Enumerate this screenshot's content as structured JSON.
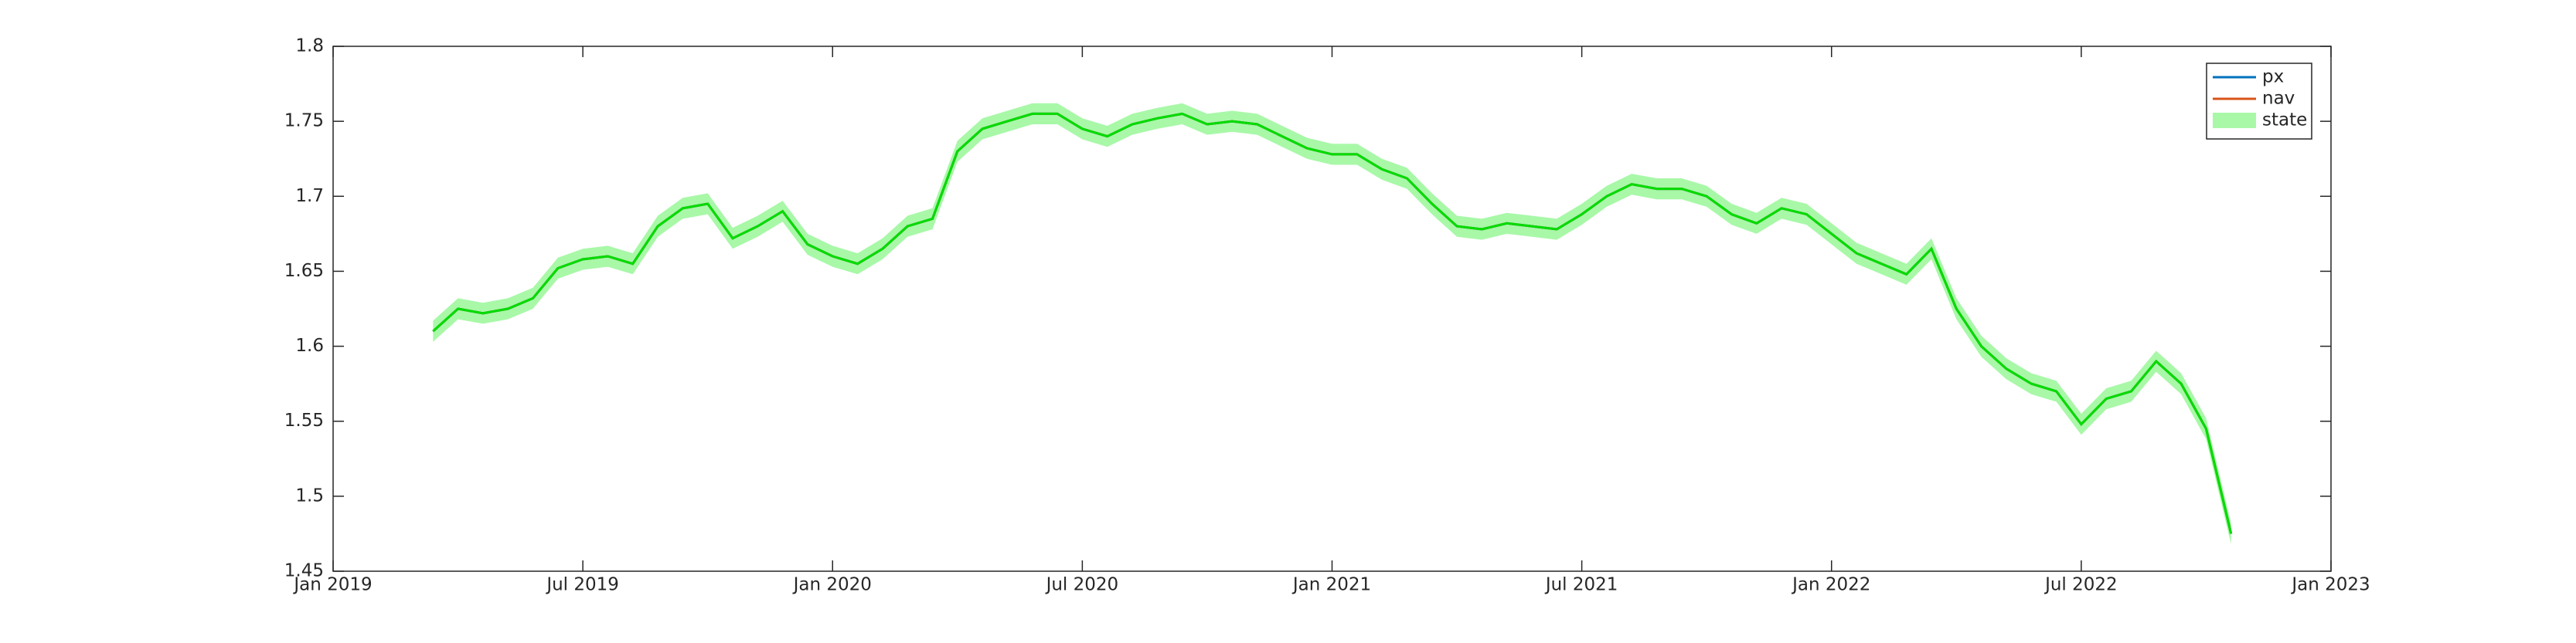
{
  "chart_data": {
    "type": "line",
    "x": [
      2019.2,
      2019.25,
      2019.3,
      2019.35,
      2019.4,
      2019.45,
      2019.5,
      2019.55,
      2019.6,
      2019.65,
      2019.7,
      2019.75,
      2019.8,
      2019.85,
      2019.9,
      2019.95,
      2020.0,
      2020.05,
      2020.1,
      2020.15,
      2020.2,
      2020.25,
      2020.3,
      2020.35,
      2020.4,
      2020.45,
      2020.5,
      2020.55,
      2020.6,
      2020.65,
      2020.7,
      2020.75,
      2020.8,
      2020.85,
      2020.9,
      2020.95,
      2021.0,
      2021.05,
      2021.1,
      2021.15,
      2021.2,
      2021.25,
      2021.3,
      2021.35,
      2021.4,
      2021.45,
      2021.5,
      2021.55,
      2021.6,
      2021.65,
      2021.7,
      2021.75,
      2021.8,
      2021.85,
      2021.9,
      2021.95,
      2022.0,
      2022.05,
      2022.1,
      2022.15,
      2022.2,
      2022.25,
      2022.3,
      2022.35,
      2022.4,
      2022.45,
      2022.5,
      2022.55,
      2022.6,
      2022.65,
      2022.7,
      2022.75,
      2022.8
    ],
    "series": [
      {
        "name": "px",
        "color": "#0072bd",
        "values": [
          1.61,
          1.625,
          1.622,
          1.625,
          1.632,
          1.652,
          1.658,
          1.66,
          1.655,
          1.68,
          1.692,
          1.695,
          1.672,
          1.68,
          1.69,
          1.668,
          1.66,
          1.655,
          1.665,
          1.68,
          1.685,
          1.73,
          1.745,
          1.75,
          1.755,
          1.755,
          1.745,
          1.74,
          1.748,
          1.752,
          1.755,
          1.748,
          1.75,
          1.748,
          1.74,
          1.732,
          1.728,
          1.728,
          1.718,
          1.712,
          1.695,
          1.68,
          1.678,
          1.682,
          1.68,
          1.678,
          1.688,
          1.7,
          1.708,
          1.705,
          1.705,
          1.7,
          1.688,
          1.682,
          1.692,
          1.688,
          1.675,
          1.662,
          1.655,
          1.648,
          1.665,
          1.625,
          1.6,
          1.585,
          1.575,
          1.57,
          1.548,
          1.565,
          1.57,
          1.59,
          1.575,
          1.545,
          1.475
        ]
      },
      {
        "name": "nav",
        "color": "#d95319",
        "values": [
          1.61,
          1.625,
          1.622,
          1.625,
          1.632,
          1.652,
          1.658,
          1.66,
          1.655,
          1.68,
          1.692,
          1.695,
          1.672,
          1.68,
          1.69,
          1.668,
          1.66,
          1.655,
          1.665,
          1.68,
          1.685,
          1.73,
          1.745,
          1.75,
          1.755,
          1.755,
          1.745,
          1.74,
          1.748,
          1.752,
          1.755,
          1.748,
          1.75,
          1.748,
          1.74,
          1.732,
          1.728,
          1.728,
          1.718,
          1.712,
          1.695,
          1.68,
          1.678,
          1.682,
          1.68,
          1.678,
          1.688,
          1.7,
          1.708,
          1.705,
          1.705,
          1.7,
          1.688,
          1.682,
          1.692,
          1.688,
          1.675,
          1.662,
          1.655,
          1.648,
          1.665,
          1.625,
          1.6,
          1.585,
          1.575,
          1.57,
          1.548,
          1.565,
          1.57,
          1.59,
          1.575,
          1.545,
          1.475
        ]
      },
      {
        "name": "state",
        "color": "#00dd00",
        "band_color": "#a8f8a8",
        "values": [
          1.61,
          1.625,
          1.622,
          1.625,
          1.632,
          1.652,
          1.658,
          1.66,
          1.655,
          1.68,
          1.692,
          1.695,
          1.672,
          1.68,
          1.69,
          1.668,
          1.66,
          1.655,
          1.665,
          1.68,
          1.685,
          1.73,
          1.745,
          1.75,
          1.755,
          1.755,
          1.745,
          1.74,
          1.748,
          1.752,
          1.755,
          1.748,
          1.75,
          1.748,
          1.74,
          1.732,
          1.728,
          1.728,
          1.718,
          1.712,
          1.695,
          1.68,
          1.678,
          1.682,
          1.68,
          1.678,
          1.688,
          1.7,
          1.708,
          1.705,
          1.705,
          1.7,
          1.688,
          1.682,
          1.692,
          1.688,
          1.675,
          1.662,
          1.655,
          1.648,
          1.665,
          1.625,
          1.6,
          1.585,
          1.575,
          1.57,
          1.548,
          1.565,
          1.57,
          1.59,
          1.575,
          1.545,
          1.475
        ],
        "lower": [
          1.603,
          1.618,
          1.615,
          1.618,
          1.625,
          1.645,
          1.651,
          1.653,
          1.648,
          1.673,
          1.685,
          1.688,
          1.665,
          1.673,
          1.683,
          1.661,
          1.653,
          1.648,
          1.658,
          1.673,
          1.678,
          1.723,
          1.738,
          1.743,
          1.748,
          1.748,
          1.738,
          1.733,
          1.741,
          1.745,
          1.748,
          1.741,
          1.743,
          1.741,
          1.733,
          1.725,
          1.721,
          1.721,
          1.711,
          1.705,
          1.688,
          1.673,
          1.671,
          1.675,
          1.673,
          1.671,
          1.681,
          1.693,
          1.701,
          1.698,
          1.698,
          1.693,
          1.681,
          1.675,
          1.685,
          1.681,
          1.668,
          1.655,
          1.648,
          1.641,
          1.658,
          1.618,
          1.593,
          1.578,
          1.568,
          1.563,
          1.541,
          1.558,
          1.563,
          1.583,
          1.568,
          1.538,
          1.468
        ],
        "upper": [
          1.617,
          1.632,
          1.629,
          1.632,
          1.639,
          1.659,
          1.665,
          1.667,
          1.662,
          1.687,
          1.699,
          1.702,
          1.679,
          1.687,
          1.697,
          1.675,
          1.667,
          1.662,
          1.672,
          1.687,
          1.692,
          1.737,
          1.752,
          1.757,
          1.762,
          1.762,
          1.752,
          1.747,
          1.755,
          1.759,
          1.762,
          1.755,
          1.757,
          1.755,
          1.747,
          1.739,
          1.735,
          1.735,
          1.725,
          1.719,
          1.702,
          1.687,
          1.685,
          1.689,
          1.687,
          1.685,
          1.695,
          1.707,
          1.715,
          1.712,
          1.712,
          1.707,
          1.695,
          1.689,
          1.699,
          1.695,
          1.682,
          1.669,
          1.662,
          1.655,
          1.672,
          1.632,
          1.607,
          1.592,
          1.582,
          1.577,
          1.555,
          1.572,
          1.577,
          1.597,
          1.582,
          1.552,
          1.482
        ]
      }
    ],
    "xlim": [
      2019,
      2023
    ],
    "xticks": [
      {
        "value": 2019,
        "label": "Jan 2019"
      },
      {
        "value": 2019.5,
        "label": "Jul 2019"
      },
      {
        "value": 2020,
        "label": "Jan 2020"
      },
      {
        "value": 2020.5,
        "label": "Jul 2020"
      },
      {
        "value": 2021,
        "label": "Jan 2021"
      },
      {
        "value": 2021.5,
        "label": "Jul 2021"
      },
      {
        "value": 2022,
        "label": "Jan 2022"
      },
      {
        "value": 2022.5,
        "label": "Jul 2022"
      },
      {
        "value": 2023,
        "label": "Jan 2023"
      }
    ],
    "ylim": [
      1.45,
      1.8
    ],
    "yticks": [
      1.45,
      1.5,
      1.55,
      1.6,
      1.65,
      1.7,
      1.75,
      1.8
    ],
    "grid": false,
    "legend": "northeast"
  }
}
